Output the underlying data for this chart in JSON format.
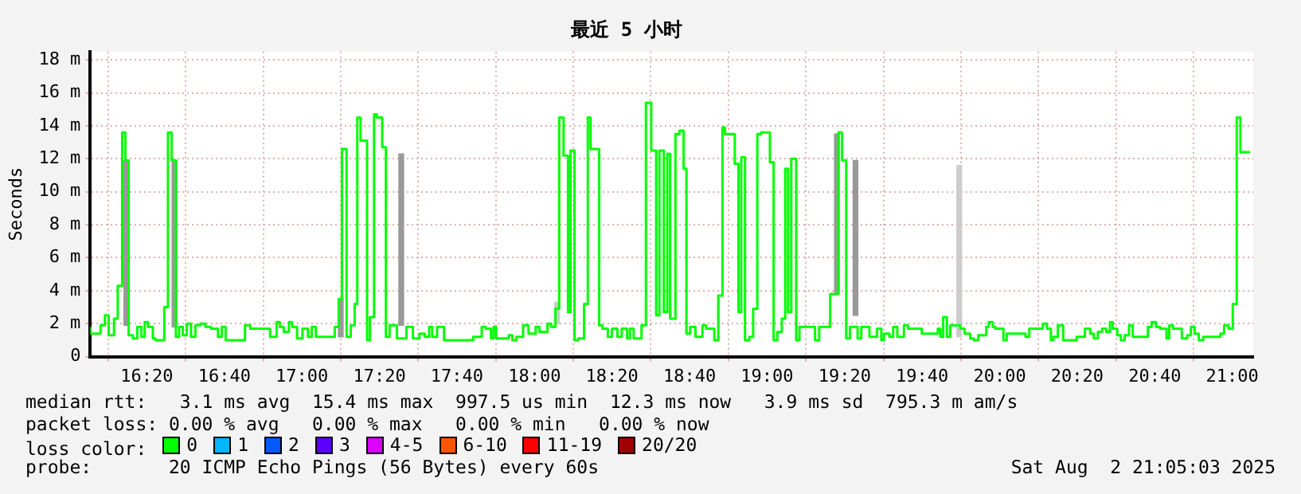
{
  "chart_data": {
    "type": "step",
    "title": "最近 5 小时",
    "ylabel": "Seconds",
    "xlim": [
      16.09,
      21.09
    ],
    "xticks": [
      {
        "value": 16.3333,
        "label": "16:20"
      },
      {
        "value": 16.6667,
        "label": "16:40"
      },
      {
        "value": 17,
        "label": "17:00"
      },
      {
        "value": 17.3333,
        "label": "17:20"
      },
      {
        "value": 17.6667,
        "label": "17:40"
      },
      {
        "value": 18,
        "label": "18:00"
      },
      {
        "value": 18.3333,
        "label": "18:20"
      },
      {
        "value": 18.6667,
        "label": "18:40"
      },
      {
        "value": 19,
        "label": "19:00"
      },
      {
        "value": 19.3333,
        "label": "19:20"
      },
      {
        "value": 19.6667,
        "label": "19:40"
      },
      {
        "value": 20,
        "label": "20:00"
      },
      {
        "value": 20.3333,
        "label": "20:20"
      },
      {
        "value": 20.6667,
        "label": "20:40"
      },
      {
        "value": 21,
        "label": "21:00"
      }
    ],
    "ylim": [
      0,
      18.5
    ],
    "yticks": [
      {
        "value": 0,
        "label": "0"
      },
      {
        "value": 2,
        "label": "2 m"
      },
      {
        "value": 4,
        "label": "4 m"
      },
      {
        "value": 6,
        "label": "6 m"
      },
      {
        "value": 8,
        "label": "8 m"
      },
      {
        "value": 10,
        "label": "10 m"
      },
      {
        "value": 12,
        "label": "12 m"
      },
      {
        "value": 14,
        "label": "14 m"
      },
      {
        "value": 16,
        "label": "16 m"
      },
      {
        "value": 18,
        "label": "18 m"
      }
    ],
    "grid": true,
    "legend": "bottom",
    "legend_title": "loss color:",
    "series": [
      {
        "type": "bar",
        "colors": [
          "#999999",
          "#999999",
          "#999999",
          "#999999",
          "#cccccc",
          "#999999",
          "#999999",
          "#cccccc"
        ],
        "x": [
          16.245,
          16.452,
          17.167,
          17.427,
          18.097,
          19.3,
          19.38,
          19.826
        ],
        "base": [
          1.9,
          1.8,
          1.2,
          1.9,
          2.0,
          3.8,
          2.5,
          1.2
        ],
        "values": [
          10.0,
          10.1,
          2.3,
          10.4,
          1.3,
          9.7,
          9.4,
          10.4
        ]
      },
      {
        "name": "0",
        "color": "#00ff00",
        "x": [
          16.09,
          16.134,
          16.153,
          16.169,
          16.192,
          16.208,
          16.227,
          16.241,
          16.255,
          16.273,
          16.292,
          16.31,
          16.324,
          16.338,
          16.359,
          16.37,
          16.408,
          16.424,
          16.44,
          16.458,
          16.472,
          16.488,
          16.505,
          16.523,
          16.542,
          16.563,
          16.585,
          16.609,
          16.639,
          16.655,
          16.672,
          16.755,
          16.778,
          16.863,
          16.891,
          16.905,
          16.922,
          16.944,
          16.958,
          16.979,
          17.002,
          17.026,
          17.042,
          17.06,
          17.141,
          17.158,
          17.172,
          17.192,
          17.21,
          17.227,
          17.238,
          17.252,
          17.28,
          17.292,
          17.31,
          17.322,
          17.345,
          17.361,
          17.377,
          17.408,
          17.449,
          17.477,
          17.505,
          17.528,
          17.547,
          17.56,
          17.581,
          17.611,
          17.736,
          17.773,
          17.79,
          17.813,
          17.824,
          17.835,
          17.889,
          17.905,
          17.922,
          17.951,
          17.974,
          18.005,
          18.021,
          18.056,
          18.072,
          18.09,
          18.106,
          18.125,
          18.144,
          18.155,
          18.172,
          18.188,
          18.213,
          18.229,
          18.241,
          18.278,
          18.292,
          18.315,
          18.333,
          18.356,
          18.375,
          18.398,
          18.41,
          18.426,
          18.46,
          18.479,
          18.502,
          18.523,
          18.537,
          18.556,
          18.571,
          18.583,
          18.606,
          18.623,
          18.641,
          18.653,
          18.669,
          18.692,
          18.722,
          18.738,
          18.773,
          18.79,
          18.808,
          18.819,
          18.861,
          18.877,
          18.889,
          18.905,
          18.924,
          18.94,
          18.958,
          18.974,
          19.012,
          19.028,
          19.044,
          19.063,
          19.078,
          19.09,
          19.104,
          19.125,
          19.139,
          19.206,
          19.224,
          19.271,
          19.306,
          19.322,
          19.34,
          19.356,
          19.389,
          19.405,
          19.44,
          19.472,
          19.491,
          19.502,
          19.526,
          19.542,
          19.56,
          19.588,
          19.606,
          19.665,
          19.734,
          19.745,
          19.757,
          19.773,
          19.787,
          19.831,
          19.849,
          19.873,
          19.889,
          19.908,
          19.942,
          19.953,
          19.97,
          19.981,
          20.016,
          20.03,
          20.111,
          20.127,
          20.185,
          20.203,
          20.22,
          20.231,
          20.25,
          20.273,
          20.331,
          20.366,
          20.389,
          20.405,
          20.422,
          20.44,
          20.458,
          20.474,
          20.486,
          20.505,
          20.521,
          20.537,
          20.556,
          20.572,
          20.637,
          20.653,
          20.672,
          20.69,
          20.717,
          20.729,
          20.745,
          20.783,
          20.806,
          20.822,
          20.838,
          20.856,
          20.875,
          20.949,
          20.965,
          20.984,
          21.002,
          21.019,
          21.035,
          21.058,
          21.076
        ],
        "values": [
          1.8,
          1.4,
          1.9,
          2.5,
          1.3,
          2.3,
          4.3,
          13.6,
          11.9,
          1.3,
          1.1,
          1.8,
          1.2,
          2.1,
          1.8,
          1.1,
          1.0,
          3.0,
          13.6,
          11.9,
          1.2,
          1.8,
          1.3,
          2.0,
          1.2,
          1.9,
          2.0,
          1.8,
          1.7,
          1.2,
          1.8,
          1.0,
          1.9,
          1.7,
          1.2,
          2.1,
          1.8,
          1.5,
          2.1,
          1.8,
          1.1,
          1.7,
          1.2,
          1.8,
          1.2,
          1.8,
          3.5,
          12.6,
          1.2,
          1.9,
          3.2,
          14.5,
          13.1,
          1.0,
          2.4,
          14.7,
          14.5,
          12.7,
          1.2,
          1.9,
          1.1,
          1.8,
          1.1,
          1.4,
          1.2,
          1.8,
          1.2,
          1.8,
          1.0,
          1.2,
          1.8,
          1.7,
          1.1,
          1.8,
          1.1,
          1.3,
          1.0,
          1.2,
          1.9,
          1.4,
          1.8,
          1.5,
          2.0,
          1.8,
          2.9,
          14.5,
          12.2,
          2.7,
          12.5,
          1.0,
          1.1,
          3.2,
          14.5,
          12.6,
          1.9,
          1.7,
          1.2,
          1.7,
          1.2,
          1.7,
          1.1,
          1.7,
          1.1,
          1.9,
          15.4,
          12.5,
          2.5,
          12.5,
          2.7,
          12.3,
          2.3,
          13.5,
          13.7,
          11.4,
          1.4,
          1.8,
          1.2,
          1.9,
          1.7,
          1.0,
          3.7,
          13.9,
          13.5,
          11.7,
          2.7,
          12.1,
          1.0,
          1.2,
          2.9,
          13.5,
          13.6,
          11.8,
          1.0,
          1.5,
          2.3,
          11.4,
          2.7,
          12.0,
          1.0,
          1.8,
          1.0,
          1.8,
          3.8,
          13.6,
          11.9,
          1.1,
          1.8,
          1.1,
          1.8,
          1.2,
          1.7,
          1.0,
          1.4,
          1.2,
          1.8,
          1.2,
          1.9,
          1.7,
          1.4,
          1.7,
          1.2,
          2.4,
          1.2,
          1.9,
          1.7,
          1.4,
          1.1,
          1.0,
          1.3,
          1.8,
          2.1,
          1.8,
          1.7,
          1.0,
          1.4,
          1.2,
          1.7,
          2.0,
          1.7,
          1.0,
          1.2,
          1.9,
          1.0,
          1.2,
          1.7,
          1.4,
          1.1,
          1.5,
          1.7,
          1.5,
          2.1,
          1.7,
          1.3,
          1.0,
          1.3,
          1.9,
          1.2,
          1.8,
          2.1,
          1.8,
          1.7,
          1.1,
          1.9,
          1.7,
          1.1,
          1.3,
          1.8,
          1.4,
          1.0,
          1.2,
          1.4,
          1.9,
          1.7,
          3.2,
          14.5,
          12.4,
          12.4
        ]
      },
      {
        "name": "1",
        "color": "#00b8ff"
      },
      {
        "name": "2",
        "color": "#0059ff"
      },
      {
        "name": "3",
        "color": "#5e00ff"
      },
      {
        "name": "4-5",
        "color": "#dd00ff"
      },
      {
        "name": "6-10",
        "color": "#ff5500"
      },
      {
        "name": "11-19",
        "color": "#ff0000"
      },
      {
        "name": "20/20",
        "color": "#a10000"
      }
    ],
    "annotations": [
      "median rtt:   3.1 ms avg  15.4 ms max  997.5 us min  12.3 ms now   3.9 ms sd  795.3 m am/s",
      "packet loss: 0.00 % avg   0.00 % max   0.00 % min   0.00 % now",
      "probe:       20 ICMP Echo Pings (56 Bytes) every 60s",
      "Sat Aug  2 21:05:03 2025"
    ]
  }
}
